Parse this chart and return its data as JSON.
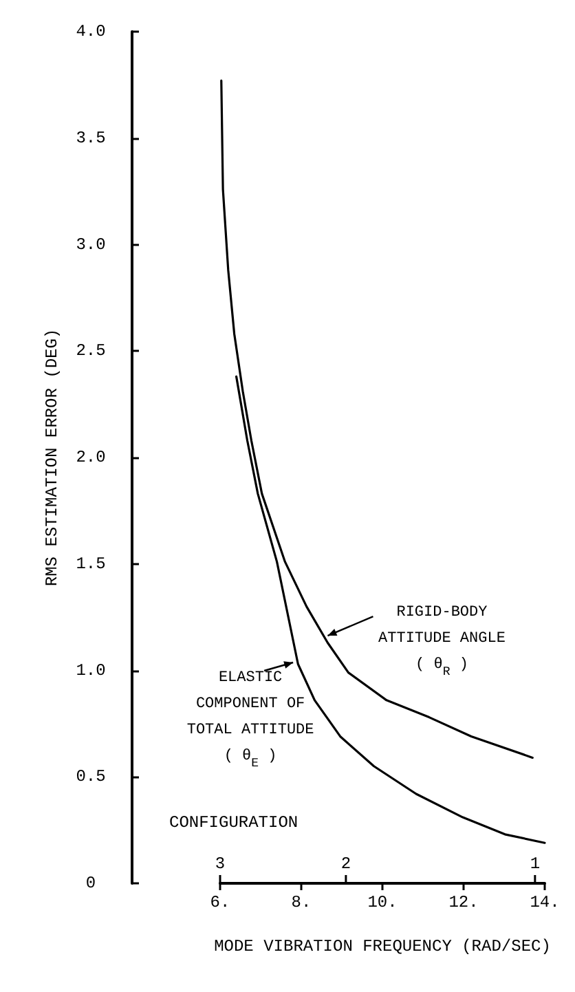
{
  "chart_data": {
    "type": "line",
    "xlabel": "MODE VIBRATION FREQUENCY (RAD/SEC)",
    "ylabel": "RMS ESTIMATION ERROR (DEG)",
    "xlim": [
      6,
      14
    ],
    "xticks": [
      {
        "value": 6,
        "label": "6."
      },
      {
        "value": 8,
        "label": "8."
      },
      {
        "value": 10,
        "label": "10."
      },
      {
        "value": 12,
        "label": "12."
      },
      {
        "value": 14,
        "label": "14."
      }
    ],
    "ylim": [
      0,
      4
    ],
    "yticks": [
      0,
      {
        "value": 0.5,
        "label": "0.5"
      },
      {
        "value": 1,
        "label": "1.0"
      },
      {
        "value": 1.5,
        "label": "1.5"
      },
      {
        "value": 2,
        "label": "2.0"
      },
      {
        "value": 2.5,
        "label": "2.5"
      },
      {
        "value": 3,
        "label": "3.0"
      },
      {
        "value": 3.5,
        "label": "3.5"
      },
      {
        "value": 4,
        "label": "4.0"
      }
    ],
    "marker": "none",
    "line_style": "solid",
    "series": [
      {
        "color": "#000000",
        "x": [
          6.03,
          6.07,
          6.2,
          6.35,
          6.56,
          6.77,
          7.03,
          7.6,
          8.13,
          8.65,
          9.16,
          10.1,
          11.15,
          12.19,
          13.7
        ],
        "values": [
          3.77,
          3.26,
          2.88,
          2.58,
          2.31,
          2.08,
          1.83,
          1.51,
          1.3,
          1.13,
          0.99,
          0.86,
          0.78,
          0.69,
          0.59
        ]
      },
      {
        "color": "#000000",
        "x": [
          6.4,
          6.67,
          6.93,
          7.4,
          7.92,
          8.33,
          8.96,
          9.79,
          10.83,
          11.98,
          13.02,
          14
        ],
        "values": [
          2.38,
          2.08,
          1.83,
          1.51,
          1.03,
          0.86,
          0.69,
          0.55,
          0.42,
          0.31,
          0.23,
          0.19
        ]
      }
    ],
    "annotations": [
      {
        "text": "RIGID-BODY\nATTITUDE ANGLE\n( θ$_{R}$ )",
        "x": 8.55,
        "y": 1.15
      },
      {
        "text": "ELASTIC\nCOMPONENT OF\nTOTAL ATTITUDE\n( θ$_{E}$ )",
        "x": 7.9,
        "y": 1.05
      },
      "CONFIGURATION",
      "3",
      "2",
      "1"
    ]
  }
}
